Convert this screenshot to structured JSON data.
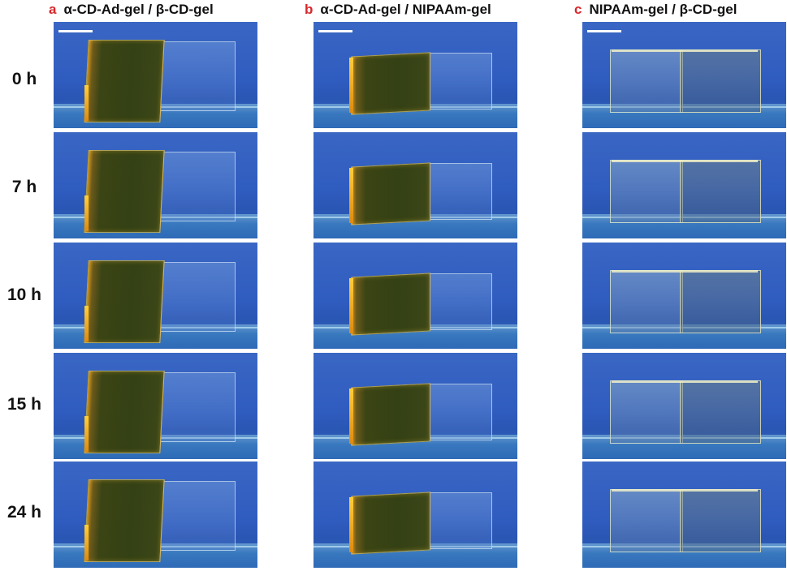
{
  "columns": [
    {
      "letter": "a",
      "title": "α-CD-Ad-gel  / β-CD-gel"
    },
    {
      "letter": "b",
      "title": "α-CD-Ad-gel  / NIPAAm-gel"
    },
    {
      "letter": "c",
      "title": "NIPAAm-gel  / β-CD-gel"
    }
  ],
  "rows": [
    "0 h",
    "7 h",
    "10 h",
    "15 h",
    "24 h"
  ],
  "colors": {
    "panel_background": "#2f5cbf",
    "letter_red": "#d9262b",
    "dark_gel": "#344115",
    "orange_edge": "#f0a020"
  }
}
